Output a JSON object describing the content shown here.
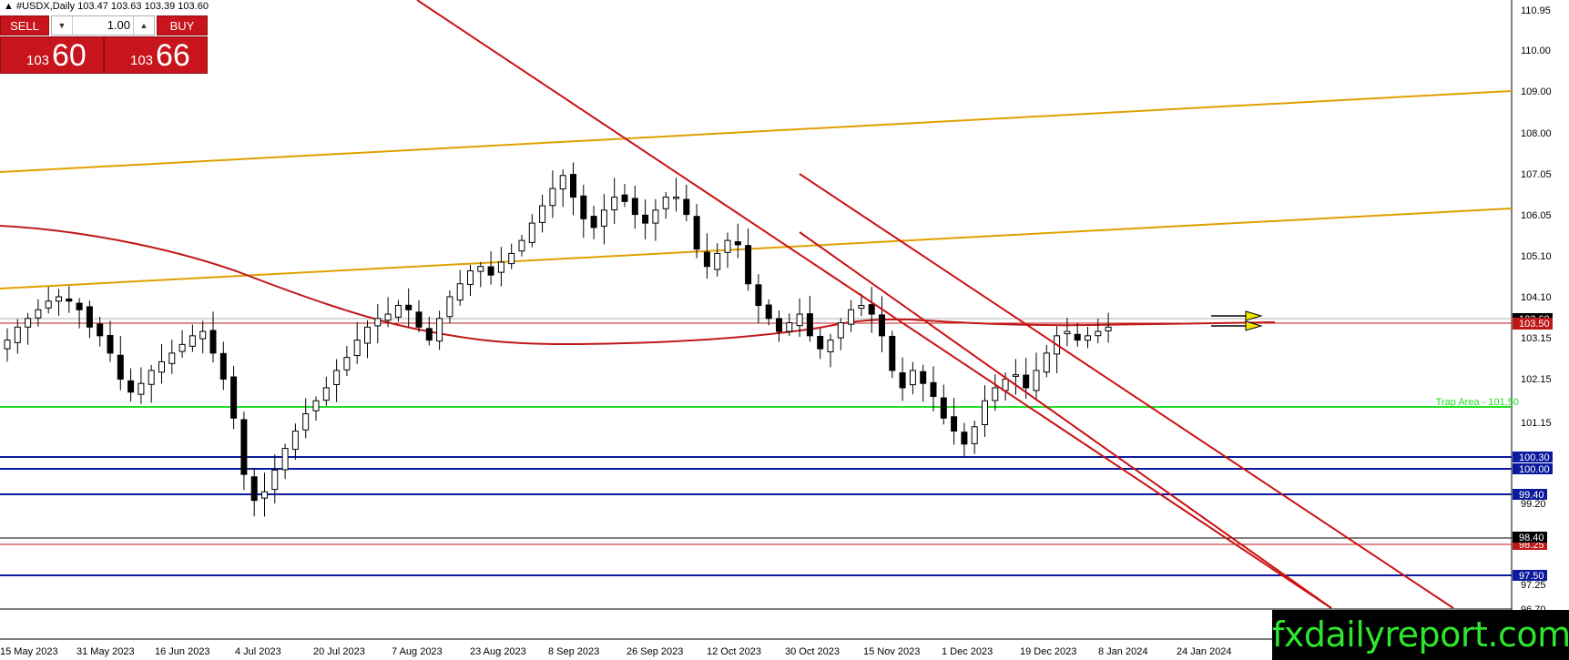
{
  "window": {
    "symbol_header": "#USDX,Daily  103.47 103.63 103.39 103.60"
  },
  "trade_panel": {
    "sell_label": "SELL",
    "buy_label": "BUY",
    "lot_value": "1.00",
    "sell_price_prefix": "103",
    "sell_price_big": "60",
    "buy_price_prefix": "103",
    "buy_price_big": "66"
  },
  "price_axis": {
    "ticks": [
      "110.95",
      "110.00",
      "109.00",
      "108.00",
      "107.05",
      "106.05",
      "105.10",
      "104.10",
      "103.15",
      "102.15",
      "101.15",
      "99.20",
      "97.25",
      "96.70"
    ]
  },
  "price_labels": {
    "current_bid": "103.60",
    "level_103_50": "103.50",
    "level_100_30": "100.30",
    "level_100_00": "100.00",
    "level_99_40": "99.40",
    "level_98_40": "98.40",
    "level_98_25": "98.25",
    "level_97_50": "97.50"
  },
  "annotations": {
    "trap_area": "Trap Area - 101.50"
  },
  "time_axis": {
    "labels": [
      "15 May 2023",
      "31 May 2023",
      "16 Jun 2023",
      "4 Jul 2023",
      "20 Jul 2023",
      "7 Aug 2023",
      "23 Aug 2023",
      "8 Sep 2023",
      "26 Sep 2023",
      "12 Oct 2023",
      "30 Oct 2023",
      "15 Nov 2023",
      "1 Dec 2023",
      "19 Dec 2023",
      "8 Jan 2024",
      "24 Jan 2024"
    ]
  },
  "logo": {
    "text": "fxdailyreport.com"
  },
  "colors": {
    "trade_red": "#c8141c",
    "support_blue": "#0b1a9e",
    "trap_green": "#22dd22",
    "trend_orange": "#e0a000",
    "channel_red": "#cc1111",
    "ma_red": "#c01818",
    "logo_green": "#2ee62e"
  },
  "chart_data": {
    "type": "candlestick",
    "title": "#USDX,Daily",
    "ohlc_last": {
      "open": 103.47,
      "high": 103.63,
      "low": 103.39,
      "close": 103.6
    },
    "ylim": [
      96.4,
      111.15
    ],
    "x_labels": [
      "15 May 2023",
      "31 May 2023",
      "16 Jun 2023",
      "4 Jul 2023",
      "20 Jul 2023",
      "7 Aug 2023",
      "23 Aug 2023",
      "8 Sep 2023",
      "26 Sep 2023",
      "12 Oct 2023",
      "30 Oct 2023",
      "15 Nov 2023",
      "1 Dec 2023",
      "19 Dec 2023",
      "8 Jan 2024",
      "24 Jan 2024"
    ],
    "close_path": [
      103.3,
      103.6,
      103.8,
      104.0,
      104.2,
      104.3,
      104.2,
      104.0,
      103.6,
      103.4,
      103.0,
      102.4,
      102.1,
      102.3,
      102.6,
      102.8,
      103.0,
      103.2,
      103.4,
      103.5,
      103.0,
      102.4,
      101.5,
      100.2,
      99.6,
      99.8,
      100.3,
      100.8,
      101.2,
      101.6,
      101.9,
      102.2,
      102.6,
      102.9,
      103.3,
      103.6,
      103.8,
      103.9,
      104.1,
      104.0,
      103.6,
      103.3,
      103.8,
      104.3,
      104.6,
      104.9,
      105.0,
      104.8,
      105.1,
      105.3,
      105.6,
      106.0,
      106.4,
      106.8,
      107.1,
      106.6,
      106.1,
      105.9,
      106.3,
      106.6,
      106.5,
      106.2,
      106.0,
      106.3,
      106.6,
      106.6,
      106.2,
      105.4,
      105.0,
      105.3,
      105.6,
      105.5,
      104.6,
      104.1,
      103.8,
      103.5,
      103.7,
      103.9,
      103.4,
      103.1,
      103.3,
      103.7,
      104.0,
      104.1,
      103.9,
      103.4,
      102.6,
      102.2,
      102.6,
      102.3,
      102.0,
      101.5,
      101.2,
      100.9,
      101.3,
      101.9,
      102.2,
      102.4,
      102.5,
      102.2,
      102.6,
      103.0,
      103.4,
      103.5,
      103.3,
      103.4,
      103.5,
      103.6
    ],
    "horizontal_levels": [
      {
        "value": 103.5,
        "label": "103.50",
        "color": "#c01818"
      },
      {
        "value": 101.5,
        "label": "Trap Area - 101.50",
        "color": "#22dd22"
      },
      {
        "value": 100.3,
        "label": "100.30",
        "color": "#0b1a9e"
      },
      {
        "value": 100.0,
        "label": "100.00",
        "color": "#0b1a9e"
      },
      {
        "value": 99.4,
        "label": "99.40",
        "color": "#0b1a9e"
      },
      {
        "value": 98.4,
        "label": "98.40",
        "color": "#000000"
      },
      {
        "value": 98.25,
        "label": "98.25",
        "color": "#c01818"
      },
      {
        "value": 97.5,
        "label": "97.50",
        "color": "#0b1a9e"
      }
    ],
    "trendlines": [
      {
        "name": "upper-orange",
        "from": {
          "bar": 0,
          "price": 107.1
        },
        "to": {
          "bar": 118,
          "price": 109.05
        },
        "color": "#e0a000"
      },
      {
        "name": "lower-orange",
        "from": {
          "bar": 0,
          "price": 104.3
        },
        "to": {
          "bar": 118,
          "price": 106.25
        },
        "color": "#e0a000"
      },
      {
        "name": "long-red-downtrend",
        "from": {
          "bar": 32,
          "price": 111.15
        },
        "to": {
          "bar": 106,
          "price": 96.6
        },
        "color": "#cc1111"
      },
      {
        "name": "channel-upper",
        "from": {
          "bar": 61,
          "price": 107.1
        },
        "to": {
          "bar": 113,
          "price": 96.6
        },
        "color": "#cc1111"
      },
      {
        "name": "channel-lower",
        "from": {
          "bar": 61,
          "price": 105.7
        },
        "to": {
          "bar": 102,
          "price": 96.6
        },
        "color": "#cc1111"
      }
    ],
    "moving_average": [
      105.8,
      105.6,
      105.2,
      104.7,
      104.2,
      103.8,
      103.5,
      103.2,
      103.0,
      102.9,
      102.9,
      103.0,
      103.2,
      103.5,
      103.7,
      103.7,
      103.6,
      103.5,
      103.5,
      103.5,
      103.5
    ],
    "grid": false
  }
}
